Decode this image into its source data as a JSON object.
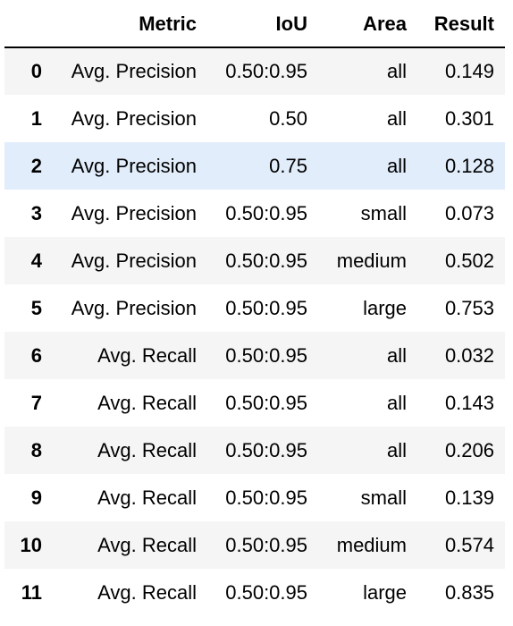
{
  "table": {
    "columns": [
      "",
      "Metric",
      "IoU",
      "Area",
      "Result"
    ],
    "rows": [
      {
        "index": "0",
        "metric": "Avg. Precision",
        "iou": "0.50:0.95",
        "area": "all",
        "result": "0.149"
      },
      {
        "index": "1",
        "metric": "Avg. Precision",
        "iou": "0.50",
        "area": "all",
        "result": "0.301"
      },
      {
        "index": "2",
        "metric": "Avg. Precision",
        "iou": "0.75",
        "area": "all",
        "result": "0.128"
      },
      {
        "index": "3",
        "metric": "Avg. Precision",
        "iou": "0.50:0.95",
        "area": "small",
        "result": "0.073"
      },
      {
        "index": "4",
        "metric": "Avg. Precision",
        "iou": "0.50:0.95",
        "area": "medium",
        "result": "0.502"
      },
      {
        "index": "5",
        "metric": "Avg. Precision",
        "iou": "0.50:0.95",
        "area": "large",
        "result": "0.753"
      },
      {
        "index": "6",
        "metric": "Avg. Recall",
        "iou": "0.50:0.95",
        "area": "all",
        "result": "0.032"
      },
      {
        "index": "7",
        "metric": "Avg. Recall",
        "iou": "0.50:0.95",
        "area": "all",
        "result": "0.143"
      },
      {
        "index": "8",
        "metric": "Avg. Recall",
        "iou": "0.50:0.95",
        "area": "all",
        "result": "0.206"
      },
      {
        "index": "9",
        "metric": "Avg. Recall",
        "iou": "0.50:0.95",
        "area": "small",
        "result": "0.139"
      },
      {
        "index": "10",
        "metric": "Avg. Recall",
        "iou": "0.50:0.95",
        "area": "medium",
        "result": "0.574"
      },
      {
        "index": "11",
        "metric": "Avg. Recall",
        "iou": "0.50:0.95",
        "area": "large",
        "result": "0.835"
      }
    ],
    "hovered_row": 2
  },
  "colors": {
    "striped_row": "#f5f5f5",
    "plain_row": "#ffffff",
    "hover_row": "#e1edfb",
    "header_rule": "#000000"
  }
}
